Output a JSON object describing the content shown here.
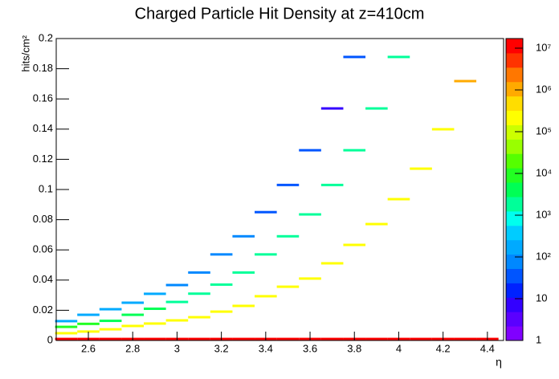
{
  "chart_data": {
    "type": "heatmap",
    "title": "Charged Particle Hit Density at z=410cm",
    "x_label": "η",
    "y_label": "hits/cm²",
    "xlim": [
      2.455,
      4.473
    ],
    "ylim": [
      0,
      0.2
    ],
    "xticks": [
      2.6,
      2.8,
      3,
      3.2,
      3.4,
      3.6,
      3.8,
      4,
      4.2,
      4.4
    ],
    "yticks": [
      0,
      0.02,
      0.04,
      0.06,
      0.08,
      0.1,
      0.12,
      0.14,
      0.16,
      0.18,
      0.2
    ],
    "zlim": [
      1,
      17000000
    ],
    "zticks": [
      1,
      10,
      {
        "value": 100,
        "label": "10²"
      },
      {
        "value": 1000,
        "label": "10³"
      },
      {
        "value": 10000,
        "label": "10⁴"
      },
      {
        "value": 100000,
        "label": "10⁵"
      },
      {
        "value": 1000000,
        "label": "10⁶"
      },
      {
        "value": 10000000,
        "label": "10⁷"
      }
    ],
    "log_z": true,
    "palette": [
      "#8000ff",
      "#5a00ff",
      "#3300ff",
      "#0022ff",
      "#0055ff",
      "#0088ff",
      "#00aaff",
      "#00ccff",
      "#00ffee",
      "#00ff99",
      "#00ff55",
      "#22ff22",
      "#55ff00",
      "#99ff00",
      "#ccff00",
      "#ffff00",
      "#ffdd00",
      "#ffaa00",
      "#ff7700",
      "#ff3300",
      "#ff0000"
    ],
    "x": [
      2.5,
      2.6,
      2.7,
      2.8,
      2.9,
      3.0,
      3.1,
      3.2,
      3.3,
      3.4,
      3.5,
      3.6,
      3.7,
      3.8,
      3.9,
      4.0,
      4.1,
      4.2,
      4.3,
      4.4,
      2.5,
      2.6,
      2.7,
      2.8,
      2.9,
      3.0,
      3.1,
      3.2,
      3.3,
      3.4,
      3.5,
      3.6,
      3.7,
      3.8,
      3.9,
      4.0,
      4.1,
      4.2,
      4.3,
      2.5,
      2.6,
      2.7,
      2.8,
      2.9,
      3.0,
      3.1,
      3.2,
      3.3,
      3.4,
      3.5,
      3.6,
      3.7,
      3.8,
      3.9,
      4.0,
      2.5,
      2.6,
      2.7,
      2.8,
      2.9,
      3.0,
      3.1,
      3.2,
      3.3,
      3.4,
      3.5,
      3.6,
      3.7,
      3.8
    ],
    "y": [
      0.001,
      0.001,
      0.001,
      0.001,
      0.001,
      0.001,
      0.001,
      0.001,
      0.001,
      0.001,
      0.001,
      0.001,
      0.001,
      0.001,
      0.001,
      0.001,
      0.001,
      0.001,
      0.001,
      0.001,
      0.0048,
      0.0059,
      0.0074,
      0.0096,
      0.0112,
      0.0133,
      0.0154,
      0.0191,
      0.0229,
      0.0293,
      0.0356,
      0.041,
      0.0511,
      0.0633,
      0.0771,
      0.0936,
      0.1138,
      0.1399,
      0.1718,
      0.009,
      0.011,
      0.013,
      0.017,
      0.021,
      0.0255,
      0.031,
      0.037,
      0.045,
      0.057,
      0.069,
      0.0835,
      0.103,
      0.126,
      0.1537,
      0.1878,
      0.0128,
      0.017,
      0.0207,
      0.025,
      0.0309,
      0.0367,
      0.045,
      0.057,
      0.069,
      0.085,
      0.103,
      0.126,
      0.1537,
      0.1878
    ],
    "z": [
      10000000,
      10000000,
      10000000,
      10000000,
      10000000,
      10000000,
      10000000,
      10000000,
      10000000,
      10000000,
      10000000,
      10000000,
      10000000,
      10000000,
      10000000,
      10000000,
      10000000,
      10000000,
      10000000,
      10000000,
      200000,
      200000,
      200000,
      200000,
      200000,
      200000,
      200000,
      200000,
      200000,
      200000,
      200000,
      200000,
      200000,
      200000,
      200000,
      200000,
      200000,
      200000,
      1000000,
      10000,
      10000,
      5000,
      5000,
      5000,
      2000,
      2000,
      2000,
      2000,
      2000,
      2000,
      2000,
      2000,
      2000,
      2000,
      2000,
      150,
      150,
      150,
      150,
      150,
      80,
      80,
      80,
      80,
      40,
      40,
      40,
      7,
      40
    ]
  }
}
